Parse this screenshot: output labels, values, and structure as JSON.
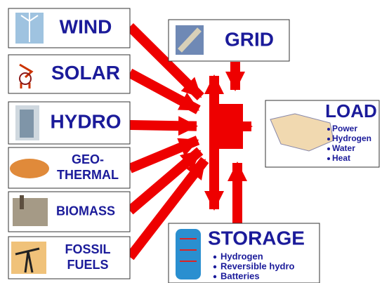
{
  "sources": [
    {
      "lines": [
        "WIND"
      ]
    },
    {
      "lines": [
        "SOLAR"
      ]
    },
    {
      "lines": [
        "HYDRO"
      ]
    },
    {
      "lines": [
        "GEO-",
        "THERMAL"
      ]
    },
    {
      "lines": [
        "BIOMASS"
      ]
    },
    {
      "lines": [
        "FOSSIL",
        "FUELS"
      ]
    }
  ],
  "grid": {
    "label": "GRID"
  },
  "load": {
    "title": "LOAD",
    "items": [
      "Power",
      "Hydrogen",
      "Water",
      "Heat"
    ]
  },
  "storage": {
    "title": "STORAGE",
    "items": [
      "Hydrogen",
      "Reversible hydro",
      "Batteries"
    ]
  }
}
